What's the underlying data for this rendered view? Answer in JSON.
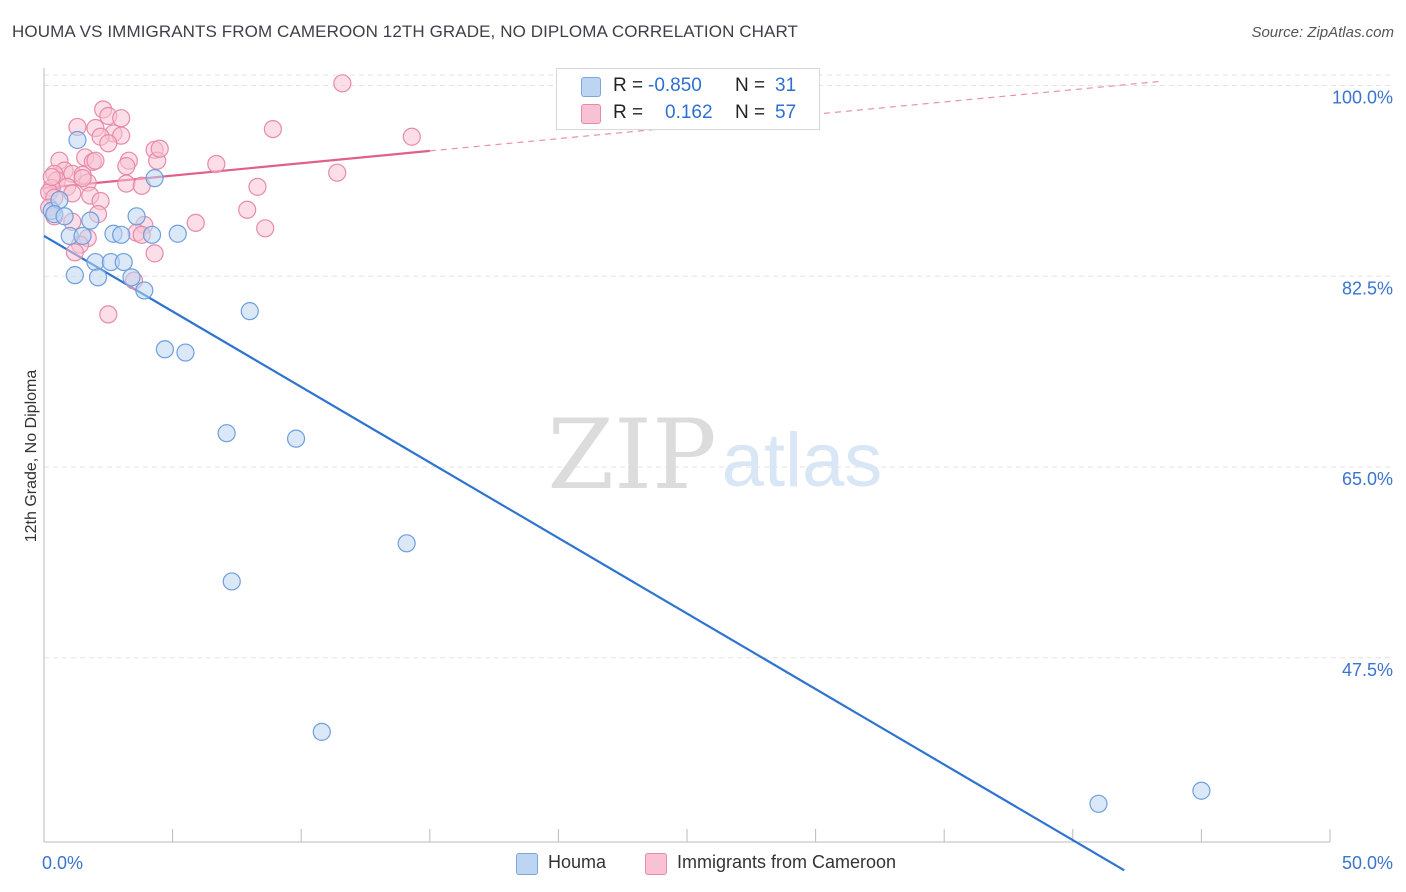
{
  "header": {
    "title": "HOUMA VS IMMIGRANTS FROM CAMEROON 12TH GRADE, NO DIPLOMA CORRELATION CHART",
    "source": "Source: ZipAtlas.com"
  },
  "watermark": {
    "zip": "ZIP",
    "atlas": "atlas"
  },
  "legend": {
    "r_label": "R =",
    "n_label": "N =",
    "houma": {
      "r": "-0.850",
      "n": "31"
    },
    "cameroon": {
      "r": "0.162",
      "n": "57"
    }
  },
  "colors": {
    "houma_fill": "#bcd5f2",
    "houma_stroke": "#6e9fdc",
    "houma_line": "#2f74d0",
    "cameroon_fill": "#f7c3d4",
    "cameroon_stroke": "#e88aa9",
    "cameroon_line": "#e0608a",
    "tick_label": "#3a74cf",
    "grid": "#e3e3e3"
  },
  "chart_data": {
    "type": "scatter",
    "title": "HOUMA VS IMMIGRANTS FROM CAMEROON 12TH GRADE, NO DIPLOMA CORRELATION CHART",
    "xlabel": "",
    "ylabel": "12th Grade, No Diploma",
    "xlim": [
      0,
      50
    ],
    "ylim": [
      28,
      102
    ],
    "x_tick_labels": [
      "0.0%",
      "50.0%"
    ],
    "y_ticks": [
      47.5,
      65.0,
      82.5,
      100.0
    ],
    "y_tick_labels": [
      "47.5%",
      "65.0%",
      "82.5%",
      "100.0%"
    ],
    "x_minor_ticks": [
      0,
      5,
      10,
      15,
      20,
      25,
      30,
      35,
      40,
      45,
      50
    ],
    "grid": true,
    "legend_position": "top-center",
    "series": [
      {
        "name": "Houma",
        "r": -0.85,
        "n": 31,
        "trend": {
          "x": [
            0,
            42
          ],
          "y": [
            86.2,
            28.0
          ]
        },
        "points": [
          [
            1.3,
            95.0
          ],
          [
            0.3,
            88.5
          ],
          [
            0.6,
            89.5
          ],
          [
            0.4,
            88.2
          ],
          [
            0.8,
            88.0
          ],
          [
            1.8,
            87.6
          ],
          [
            1.0,
            86.2
          ],
          [
            1.5,
            86.2
          ],
          [
            2.7,
            86.4
          ],
          [
            3.0,
            86.3
          ],
          [
            3.6,
            88.0
          ],
          [
            4.2,
            86.3
          ],
          [
            5.2,
            86.4
          ],
          [
            4.3,
            91.5
          ],
          [
            1.2,
            82.6
          ],
          [
            2.0,
            83.8
          ],
          [
            2.1,
            82.4
          ],
          [
            2.6,
            83.8
          ],
          [
            3.1,
            83.8
          ],
          [
            3.4,
            82.4
          ],
          [
            3.9,
            81.2
          ],
          [
            8.0,
            79.3
          ],
          [
            4.7,
            75.8
          ],
          [
            5.5,
            75.5
          ],
          [
            7.1,
            68.1
          ],
          [
            9.8,
            67.6
          ],
          [
            7.3,
            54.5
          ],
          [
            14.1,
            58.0
          ],
          [
            10.8,
            40.7
          ],
          [
            41.0,
            34.1
          ],
          [
            45.0,
            35.3
          ]
        ]
      },
      {
        "name": "Immigrants from Cameroon",
        "r": 0.162,
        "n": 57,
        "trend": {
          "x": [
            0,
            15
          ],
          "y": [
            90.6,
            94.0
          ]
        },
        "trend_dashed": {
          "x": [
            15,
            43.5
          ],
          "y": [
            94.0,
            100.4
          ]
        },
        "points": [
          [
            11.6,
            100.2
          ],
          [
            2.3,
            97.8
          ],
          [
            2.5,
            97.2
          ],
          [
            3.0,
            97.0
          ],
          [
            1.3,
            96.2
          ],
          [
            2.0,
            96.1
          ],
          [
            2.7,
            95.6
          ],
          [
            2.2,
            95.3
          ],
          [
            3.0,
            95.4
          ],
          [
            2.5,
            94.7
          ],
          [
            8.9,
            96.0
          ],
          [
            14.3,
            95.3
          ],
          [
            4.3,
            94.1
          ],
          [
            1.6,
            93.4
          ],
          [
            1.9,
            93.0
          ],
          [
            2.0,
            93.1
          ],
          [
            0.6,
            93.1
          ],
          [
            3.3,
            93.1
          ],
          [
            4.4,
            93.1
          ],
          [
            3.2,
            92.6
          ],
          [
            6.7,
            92.8
          ],
          [
            0.8,
            92.2
          ],
          [
            0.4,
            91.9
          ],
          [
            1.1,
            91.9
          ],
          [
            1.5,
            91.8
          ],
          [
            0.5,
            91.3
          ],
          [
            1.7,
            91.1
          ],
          [
            0.9,
            90.7
          ],
          [
            0.3,
            90.6
          ],
          [
            3.2,
            91.0
          ],
          [
            3.8,
            90.8
          ],
          [
            11.4,
            92.0
          ],
          [
            8.3,
            90.7
          ],
          [
            0.2,
            90.2
          ],
          [
            1.1,
            90.1
          ],
          [
            1.8,
            89.9
          ],
          [
            0.4,
            89.7
          ],
          [
            2.2,
            89.4
          ],
          [
            0.2,
            88.8
          ],
          [
            7.9,
            88.6
          ],
          [
            2.1,
            88.2
          ],
          [
            0.4,
            88.0
          ],
          [
            1.1,
            87.5
          ],
          [
            3.9,
            87.2
          ],
          [
            5.9,
            87.4
          ],
          [
            8.6,
            86.9
          ],
          [
            1.7,
            86.0
          ],
          [
            1.4,
            85.4
          ],
          [
            1.2,
            84.7
          ],
          [
            4.3,
            84.6
          ],
          [
            3.6,
            86.5
          ],
          [
            3.8,
            86.3
          ],
          [
            3.5,
            82.1
          ],
          [
            2.5,
            79.0
          ],
          [
            0.3,
            91.6
          ],
          [
            1.5,
            91.5
          ],
          [
            4.5,
            94.2
          ]
        ]
      }
    ]
  },
  "bottom_legend": [
    {
      "label": "Houma",
      "swatch": "blue"
    },
    {
      "label": "Immigrants from Cameroon",
      "swatch": "pink"
    }
  ]
}
